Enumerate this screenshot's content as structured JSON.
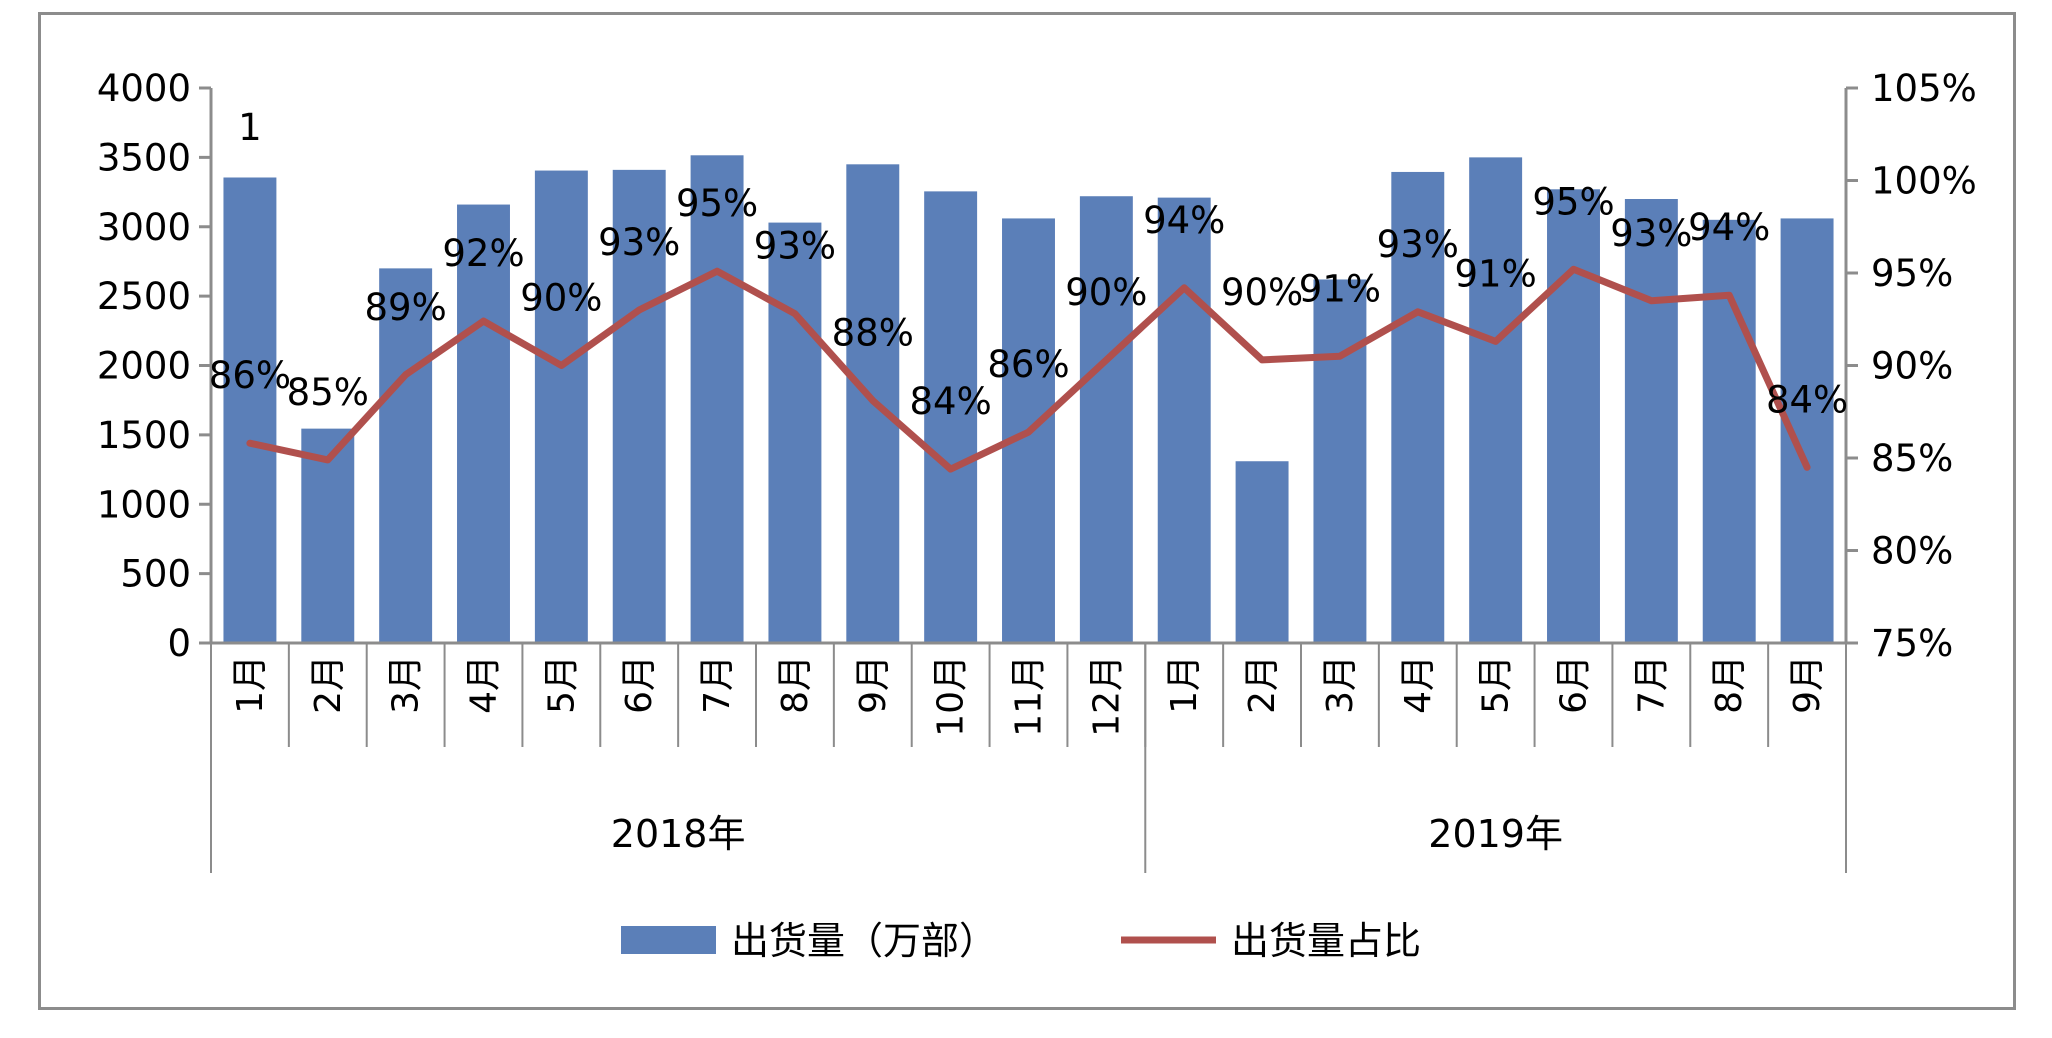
{
  "chart_data": {
    "type": "bar",
    "title": "",
    "categories": [
      "1月",
      "2月",
      "3月",
      "4月",
      "5月",
      "6月",
      "7月",
      "8月",
      "9月",
      "10月",
      "11月",
      "12月",
      "1月",
      "2月",
      "3月",
      "4月",
      "5月",
      "6月",
      "7月",
      "8月",
      "9月"
    ],
    "groups": [
      {
        "label": "2018年",
        "count": 12
      },
      {
        "label": "2019年",
        "count": 9
      }
    ],
    "series": [
      {
        "name": "出货量（万部）",
        "type": "bar",
        "axis": "left",
        "color": "#5B7FB8",
        "values": [
          3355,
          1545,
          2700,
          3160,
          3405,
          3410,
          3515,
          3030,
          3450,
          3255,
          3060,
          3220,
          3210,
          1310,
          2620,
          3395,
          3500,
          3270,
          3200,
          3050,
          3060
        ]
      },
      {
        "name": "出货量占比",
        "type": "line",
        "axis": "right",
        "color": "#B0504D",
        "values": [
          0.858,
          0.849,
          0.895,
          0.924,
          0.9,
          0.93,
          0.951,
          0.928,
          0.881,
          0.844,
          0.864,
          0.903,
          0.942,
          0.903,
          0.905,
          0.929,
          0.913,
          0.952,
          0.935,
          0.938,
          0.845
        ],
        "data_labels": [
          "86%",
          "85%",
          "89%",
          "92%",
          "90%",
          "93%",
          "95%",
          "93%",
          "88%",
          "84%",
          "86%",
          "90%",
          "94%",
          "90%",
          "91%",
          "93%",
          "91%",
          "95%",
          "93%",
          "94%",
          "84%"
        ]
      }
    ],
    "y_left": {
      "min": 0,
      "max": 4000,
      "step": 500,
      "ticks": [
        "0",
        "500",
        "1000",
        "1500",
        "2000",
        "2500",
        "3000",
        "3500",
        "4000"
      ]
    },
    "y_right": {
      "min": 0.75,
      "max": 1.05,
      "step": 0.05,
      "ticks": [
        "75%",
        "80%",
        "85%",
        "90%",
        "95%",
        "100%",
        "105%"
      ]
    },
    "annotations": [
      "1"
    ],
    "legend": {
      "position": "bottom"
    },
    "grid": false
  }
}
